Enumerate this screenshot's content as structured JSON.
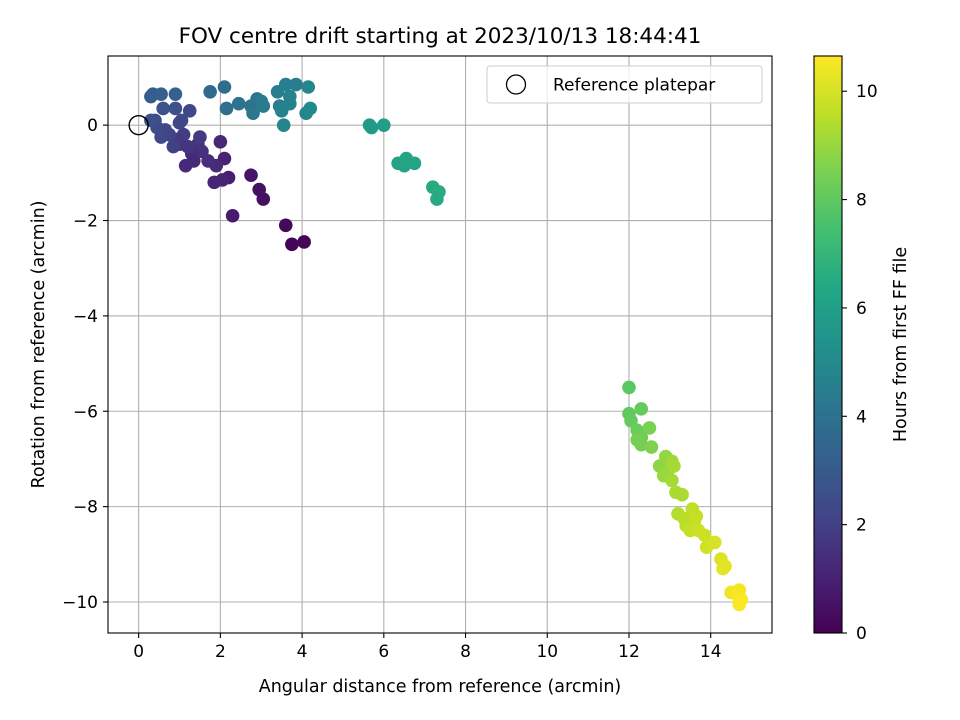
{
  "chart_data": {
    "type": "scatter",
    "title": "FOV centre drift starting at 2023/10/13 18:44:41",
    "xlabel": "Angular distance from reference (arcmin)",
    "ylabel": "Rotation from reference (arcmin)",
    "xlim": [
      -0.75,
      15.5
    ],
    "ylim": [
      -10.65,
      1.45
    ],
    "xticks": [
      0,
      2,
      4,
      6,
      8,
      10,
      12,
      14
    ],
    "yticks": [
      0,
      -2,
      -4,
      -6,
      -8,
      -10
    ],
    "xtick_labels": [
      "0",
      "2",
      "4",
      "6",
      "8",
      "10",
      "12",
      "14"
    ],
    "ytick_labels": [
      "0",
      "−2",
      "−4",
      "−6",
      "−8",
      "−10"
    ],
    "grid": true,
    "colormap": "viridis",
    "colorbar": {
      "label": "Hours from first FF file",
      "range": [
        0,
        10.65
      ],
      "ticks": [
        0,
        2,
        4,
        6,
        8,
        10
      ],
      "tick_labels": [
        "0",
        "2",
        "4",
        "6",
        "8",
        "10"
      ]
    },
    "legend": {
      "position": "top-right",
      "entries": [
        "Reference platepar"
      ]
    },
    "reference_point": {
      "x": 0,
      "y": 0,
      "label": "Reference platepar"
    },
    "points": [
      {
        "x": 3.6,
        "y": -2.1,
        "t": 0.2
      },
      {
        "x": 3.75,
        "y": -2.5,
        "t": 0.1
      },
      {
        "x": 4.05,
        "y": -2.45,
        "t": 0.15
      },
      {
        "x": 2.3,
        "y": -1.9,
        "t": 0.8
      },
      {
        "x": 2.75,
        "y": -1.05,
        "t": 0.6
      },
      {
        "x": 2.95,
        "y": -1.35,
        "t": 0.5
      },
      {
        "x": 3.05,
        "y": -1.55,
        "t": 0.45
      },
      {
        "x": 2.2,
        "y": -1.1,
        "t": 0.9
      },
      {
        "x": 2.05,
        "y": -1.15,
        "t": 1.0
      },
      {
        "x": 1.85,
        "y": -1.2,
        "t": 1.1
      },
      {
        "x": 2.1,
        "y": -0.7,
        "t": 1.0
      },
      {
        "x": 2.0,
        "y": -0.35,
        "t": 1.2
      },
      {
        "x": 1.9,
        "y": -0.85,
        "t": 1.3
      },
      {
        "x": 1.7,
        "y": -0.75,
        "t": 1.4
      },
      {
        "x": 1.55,
        "y": -0.55,
        "t": 1.5
      },
      {
        "x": 1.45,
        "y": -0.4,
        "t": 1.6
      },
      {
        "x": 1.5,
        "y": -0.25,
        "t": 1.8
      },
      {
        "x": 1.3,
        "y": -0.6,
        "t": 1.4
      },
      {
        "x": 1.35,
        "y": -0.75,
        "t": 1.2
      },
      {
        "x": 1.15,
        "y": -0.85,
        "t": 1.3
      },
      {
        "x": 1.2,
        "y": -0.45,
        "t": 1.7
      },
      {
        "x": 1.1,
        "y": -0.2,
        "t": 1.9
      },
      {
        "x": 1.0,
        "y": -0.4,
        "t": 1.6
      },
      {
        "x": 0.95,
        "y": -0.3,
        "t": 1.8
      },
      {
        "x": 0.85,
        "y": -0.45,
        "t": 2.0
      },
      {
        "x": 0.75,
        "y": -0.2,
        "t": 2.1
      },
      {
        "x": 0.65,
        "y": -0.1,
        "t": 2.2
      },
      {
        "x": 0.55,
        "y": -0.25,
        "t": 2.3
      },
      {
        "x": 0.45,
        "y": -0.05,
        "t": 2.4
      },
      {
        "x": 0.4,
        "y": 0.1,
        "t": 2.5
      },
      {
        "x": 0.3,
        "y": 0.1,
        "t": 2.6
      },
      {
        "x": 0.6,
        "y": 0.35,
        "t": 2.7
      },
      {
        "x": 0.9,
        "y": 0.35,
        "t": 2.6
      },
      {
        "x": 1.05,
        "y": 0.1,
        "t": 2.5
      },
      {
        "x": 1.25,
        "y": 0.3,
        "t": 2.3
      },
      {
        "x": 1.0,
        "y": 0.05,
        "t": 2.2
      },
      {
        "x": 0.3,
        "y": 0.6,
        "t": 3.0
      },
      {
        "x": 0.35,
        "y": 0.65,
        "t": 3.1
      },
      {
        "x": 0.55,
        "y": 0.65,
        "t": 3.2
      },
      {
        "x": 0.9,
        "y": 0.65,
        "t": 3.3
      },
      {
        "x": 1.75,
        "y": 0.7,
        "t": 3.7
      },
      {
        "x": 2.1,
        "y": 0.8,
        "t": 3.8
      },
      {
        "x": 2.15,
        "y": 0.35,
        "t": 3.9
      },
      {
        "x": 2.45,
        "y": 0.45,
        "t": 4.0
      },
      {
        "x": 2.75,
        "y": 0.4,
        "t": 4.1
      },
      {
        "x": 2.8,
        "y": 0.25,
        "t": 4.2
      },
      {
        "x": 2.9,
        "y": 0.55,
        "t": 4.1
      },
      {
        "x": 3.0,
        "y": 0.5,
        "t": 4.3
      },
      {
        "x": 3.05,
        "y": 0.4,
        "t": 4.4
      },
      {
        "x": 3.4,
        "y": 0.7,
        "t": 4.5
      },
      {
        "x": 3.45,
        "y": 0.4,
        "t": 4.6
      },
      {
        "x": 3.5,
        "y": 0.3,
        "t": 4.7
      },
      {
        "x": 3.55,
        "y": 0.0,
        "t": 4.8
      },
      {
        "x": 3.6,
        "y": 0.85,
        "t": 4.5
      },
      {
        "x": 3.7,
        "y": 0.45,
        "t": 4.6
      },
      {
        "x": 3.7,
        "y": 0.6,
        "t": 4.7
      },
      {
        "x": 3.85,
        "y": 0.85,
        "t": 4.4
      },
      {
        "x": 4.1,
        "y": 0.25,
        "t": 4.8
      },
      {
        "x": 4.15,
        "y": 0.8,
        "t": 4.9
      },
      {
        "x": 4.2,
        "y": 0.35,
        "t": 5.0
      },
      {
        "x": 5.65,
        "y": 0.0,
        "t": 5.7
      },
      {
        "x": 5.7,
        "y": -0.05,
        "t": 5.8
      },
      {
        "x": 6.0,
        "y": 0.0,
        "t": 5.9
      },
      {
        "x": 6.35,
        "y": -0.8,
        "t": 6.1
      },
      {
        "x": 6.5,
        "y": -0.85,
        "t": 6.2
      },
      {
        "x": 6.55,
        "y": -0.7,
        "t": 6.3
      },
      {
        "x": 6.75,
        "y": -0.8,
        "t": 6.2
      },
      {
        "x": 7.2,
        "y": -1.3,
        "t": 6.5
      },
      {
        "x": 7.35,
        "y": -1.4,
        "t": 6.6
      },
      {
        "x": 7.3,
        "y": -1.55,
        "t": 6.5
      },
      {
        "x": 12.0,
        "y": -5.5,
        "t": 7.9
      },
      {
        "x": 12.0,
        "y": -6.05,
        "t": 8.0
      },
      {
        "x": 12.05,
        "y": -6.2,
        "t": 8.1
      },
      {
        "x": 12.3,
        "y": -5.95,
        "t": 8.1
      },
      {
        "x": 12.2,
        "y": -6.4,
        "t": 8.2
      },
      {
        "x": 12.3,
        "y": -6.55,
        "t": 8.3
      },
      {
        "x": 12.2,
        "y": -6.6,
        "t": 8.4
      },
      {
        "x": 12.3,
        "y": -6.7,
        "t": 8.4
      },
      {
        "x": 12.5,
        "y": -6.35,
        "t": 8.5
      },
      {
        "x": 12.55,
        "y": -6.75,
        "t": 8.6
      },
      {
        "x": 12.75,
        "y": -7.15,
        "t": 8.8
      },
      {
        "x": 12.9,
        "y": -6.95,
        "t": 8.9
      },
      {
        "x": 12.95,
        "y": -7.25,
        "t": 9.0
      },
      {
        "x": 12.85,
        "y": -7.35,
        "t": 9.0
      },
      {
        "x": 13.05,
        "y": -7.05,
        "t": 9.1
      },
      {
        "x": 13.1,
        "y": -7.15,
        "t": 9.2
      },
      {
        "x": 13.05,
        "y": -7.45,
        "t": 9.2
      },
      {
        "x": 13.15,
        "y": -7.7,
        "t": 9.3
      },
      {
        "x": 13.3,
        "y": -7.75,
        "t": 9.3
      },
      {
        "x": 13.2,
        "y": -8.15,
        "t": 9.4
      },
      {
        "x": 13.35,
        "y": -8.25,
        "t": 9.5
      },
      {
        "x": 13.4,
        "y": -8.4,
        "t": 9.5
      },
      {
        "x": 13.55,
        "y": -8.05,
        "t": 9.6
      },
      {
        "x": 13.6,
        "y": -8.3,
        "t": 9.6
      },
      {
        "x": 13.5,
        "y": -8.5,
        "t": 9.7
      },
      {
        "x": 13.65,
        "y": -8.2,
        "t": 9.7
      },
      {
        "x": 13.7,
        "y": -8.5,
        "t": 9.8
      },
      {
        "x": 13.85,
        "y": -8.6,
        "t": 9.8
      },
      {
        "x": 13.9,
        "y": -8.85,
        "t": 9.9
      },
      {
        "x": 14.1,
        "y": -8.75,
        "t": 10.0
      },
      {
        "x": 14.25,
        "y": -9.1,
        "t": 10.1
      },
      {
        "x": 14.3,
        "y": -9.3,
        "t": 10.2
      },
      {
        "x": 14.35,
        "y": -9.25,
        "t": 10.2
      },
      {
        "x": 14.5,
        "y": -9.8,
        "t": 10.4
      },
      {
        "x": 14.65,
        "y": -9.85,
        "t": 10.5
      },
      {
        "x": 14.7,
        "y": -9.75,
        "t": 10.5
      },
      {
        "x": 14.7,
        "y": -10.0,
        "t": 10.6
      },
      {
        "x": 14.75,
        "y": -9.95,
        "t": 10.6
      },
      {
        "x": 14.7,
        "y": -10.05,
        "t": 10.6
      }
    ]
  }
}
